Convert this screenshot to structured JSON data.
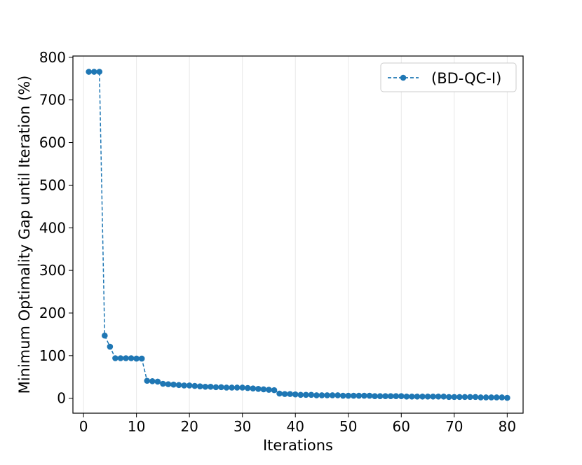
{
  "chart_data": {
    "type": "line",
    "xlabel": "Iterations",
    "ylabel": "Minimum Optimality Gap until Iteration (%)",
    "xlim": [
      -2,
      83
    ],
    "ylim": [
      -35,
      803
    ],
    "xticks": [
      0,
      10,
      20,
      30,
      40,
      50,
      60,
      70,
      80
    ],
    "yticks": [
      0,
      100,
      200,
      300,
      400,
      500,
      600,
      700,
      800
    ],
    "grid": "vertical-light",
    "legend_position": "top-right",
    "series": [
      {
        "name": "(BD-QC-I)",
        "color": "#1f77b4",
        "line_style": "dashed",
        "marker": "circle",
        "x": [
          1,
          2,
          3,
          4,
          5,
          6,
          7,
          8,
          9,
          10,
          11,
          12,
          13,
          14,
          15,
          16,
          17,
          18,
          19,
          20,
          21,
          22,
          23,
          24,
          25,
          26,
          27,
          28,
          29,
          30,
          31,
          32,
          33,
          34,
          35,
          36,
          37,
          38,
          39,
          40,
          41,
          42,
          43,
          44,
          45,
          46,
          47,
          48,
          49,
          50,
          51,
          52,
          53,
          54,
          55,
          56,
          57,
          58,
          59,
          60,
          61,
          62,
          63,
          64,
          65,
          66,
          67,
          68,
          69,
          70,
          71,
          72,
          73,
          74,
          75,
          76,
          77,
          78,
          79,
          80
        ],
        "y": [
          766,
          766,
          766,
          147,
          121,
          94,
          94,
          94,
          94,
          93,
          93,
          41,
          40,
          39,
          34,
          33,
          32,
          31,
          30,
          30,
          29,
          28,
          27,
          27,
          26,
          26,
          25,
          25,
          25,
          25,
          24,
          23,
          22,
          21,
          20,
          19,
          11,
          10,
          10,
          9,
          8,
          8,
          8,
          7,
          7,
          7,
          7,
          7,
          6,
          6,
          6,
          6,
          6,
          6,
          5,
          5,
          5,
          5,
          5,
          5,
          4,
          4,
          4,
          4,
          4,
          4,
          4,
          4,
          3,
          3,
          3,
          3,
          3,
          3,
          2,
          2,
          2,
          2,
          2,
          1
        ]
      }
    ]
  }
}
